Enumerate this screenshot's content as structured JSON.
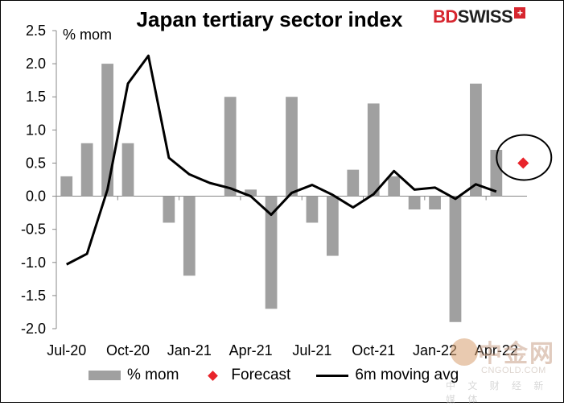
{
  "chart_data": {
    "type": "bar",
    "title": "Japan tertiary sector index",
    "ylabel": "% mom",
    "ylim": [
      -2.0,
      2.5
    ],
    "yticks": [
      2.5,
      2.0,
      1.5,
      1.0,
      0.5,
      0.0,
      -0.5,
      -1.0,
      -1.5,
      -2.0
    ],
    "ytick_labels": [
      "2.5",
      "2.0",
      "1.5",
      "1.0",
      "0.5",
      "0.0",
      "-0.5",
      "-1.0",
      "-1.5",
      "-2.0"
    ],
    "x_tick_labels": [
      "Jul-20",
      "Oct-20",
      "Jan-21",
      "Apr-21",
      "Jul-21",
      "Oct-21",
      "Jan-22",
      "Apr-22"
    ],
    "categories": [
      "Jul-20",
      "Aug-20",
      "Sep-20",
      "Oct-20",
      "Nov-20",
      "Dec-20",
      "Jan-21",
      "Feb-21",
      "Mar-21",
      "Apr-21",
      "May-21",
      "Jun-21",
      "Jul-21",
      "Aug-21",
      "Sep-21",
      "Oct-21",
      "Nov-21",
      "Dec-21",
      "Jan-22",
      "Feb-22",
      "Mar-22",
      "Apr-22",
      "May-22"
    ],
    "series": [
      {
        "name": "% mom",
        "kind": "bar",
        "color": "#a0a0a0",
        "values": [
          0.3,
          0.8,
          2.0,
          0.8,
          null,
          -0.4,
          -1.2,
          null,
          1.5,
          0.1,
          -1.7,
          1.5,
          -0.4,
          -0.9,
          0.4,
          1.4,
          0.3,
          -0.2,
          -0.2,
          -1.9,
          1.7,
          0.7,
          null
        ]
      },
      {
        "name": "Forecast",
        "kind": "point",
        "color": "#e8242b",
        "values": [
          null,
          null,
          null,
          null,
          null,
          null,
          null,
          null,
          null,
          null,
          null,
          null,
          null,
          null,
          null,
          null,
          null,
          null,
          null,
          null,
          null,
          null,
          0.5
        ]
      },
      {
        "name": "6m moving avg",
        "kind": "line",
        "color": "#000000",
        "values": [
          -1.03,
          -0.87,
          0.1,
          1.7,
          2.12,
          0.58,
          0.33,
          0.2,
          0.12,
          0.0,
          -0.28,
          0.05,
          0.17,
          0.02,
          -0.17,
          0.03,
          0.38,
          0.1,
          0.13,
          -0.04,
          0.18,
          0.07,
          null
        ]
      }
    ],
    "annotation": "circle around forecast",
    "legend_position": "bottom"
  },
  "legend": {
    "bars": "% mom",
    "forecast": "Forecast",
    "line": "6m moving avg"
  },
  "brand": {
    "bd": "BD",
    "swiss": "SWISS",
    "cross": "+"
  },
  "watermark": {
    "name": "中金网",
    "url": "CNGOLD.COM",
    "sub": "中 文 财 经 新 媒 体"
  }
}
